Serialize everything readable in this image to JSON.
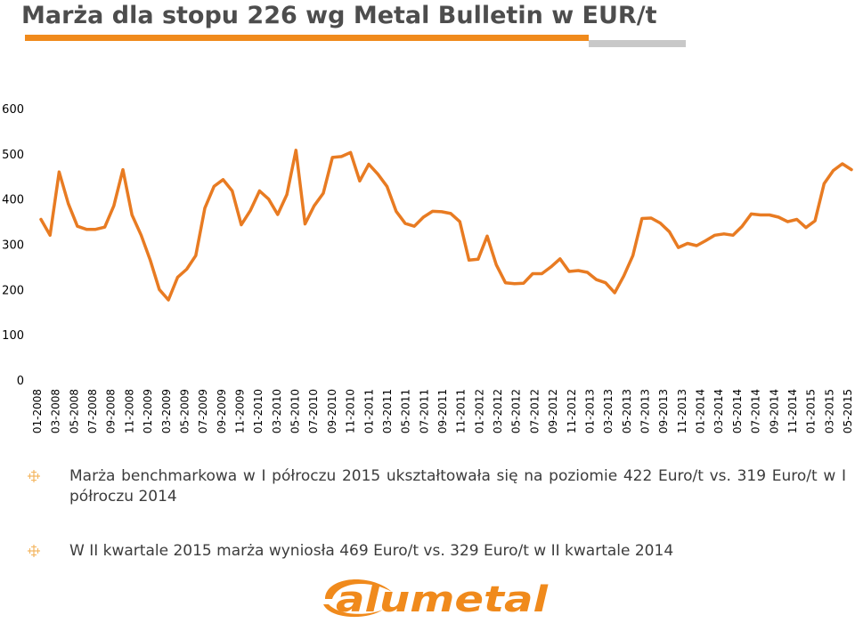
{
  "title": "Marża dla stopu 226 wg Metal Bulletin w EUR/t",
  "colors": {
    "accent": "#f08a1c",
    "line": "#e87b22",
    "gray": "#c8c8c8",
    "text": "#3c3c3c"
  },
  "bullets": [
    "Marża benchmarkowa w I półroczu 2015 ukształtowała się na poziomie 422 Euro/t vs. 319 Euro/t w I półroczu 2014",
    "W II kwartale 2015 marża wyniosła 469 Euro/t vs. 329 Euro/t w II kwartale 2014"
  ],
  "logo": {
    "text": "alumetal",
    "icon": "alumetal-logo"
  },
  "chart_data": {
    "type": "line",
    "title": "Marża dla stopu 226 wg Metal Bulletin w EUR/t",
    "xlabel": "",
    "ylabel": "",
    "ylim": [
      0,
      600
    ],
    "yticks": [
      0,
      100,
      200,
      300,
      400,
      500,
      600
    ],
    "grid": false,
    "legend": "none",
    "xtick_labels": [
      "01-2008",
      "03-2008",
      "05-2008",
      "07-2008",
      "09-2008",
      "11-2008",
      "01-2009",
      "03-2009",
      "05-2009",
      "07-2009",
      "09-2009",
      "11-2009",
      "01-2010",
      "03-2010",
      "05-2010",
      "07-2010",
      "09-2010",
      "11-2010",
      "01-2011",
      "03-2011",
      "05-2011",
      "07-2011",
      "09-2011",
      "11-2011",
      "01-2012",
      "03-2012",
      "05-2012",
      "07-2012",
      "09-2012",
      "11-2012",
      "01-2013",
      "03-2013",
      "05-2013",
      "07-2013",
      "09-2013",
      "11-2013",
      "01-2014",
      "03-2014",
      "05-2014",
      "07-2014",
      "09-2014",
      "11-2014",
      "01-2015",
      "03-2015",
      "05-2015"
    ],
    "series": [
      {
        "values": [
          355,
          320,
          460,
          390,
          340,
          333,
          333,
          338,
          385,
          465,
          365,
          320,
          265,
          200,
          177,
          227,
          245,
          275,
          380,
          428,
          443,
          418,
          343,
          375,
          418,
          400,
          366,
          410,
          508,
          345,
          385,
          413,
          492,
          494,
          503,
          440,
          477,
          455,
          428,
          373,
          346,
          340,
          360,
          373,
          372,
          368,
          350,
          265,
          267,
          318,
          255,
          215,
          213,
          214,
          235,
          235,
          250,
          268,
          240,
          242,
          238,
          222,
          215,
          193,
          230,
          275,
          357,
          358,
          347,
          328,
          293,
          302,
          297,
          308,
          320,
          323,
          320,
          340,
          367,
          365,
          365,
          360,
          350,
          355,
          337,
          352,
          434,
          463,
          478,
          465
        ]
      }
    ]
  }
}
